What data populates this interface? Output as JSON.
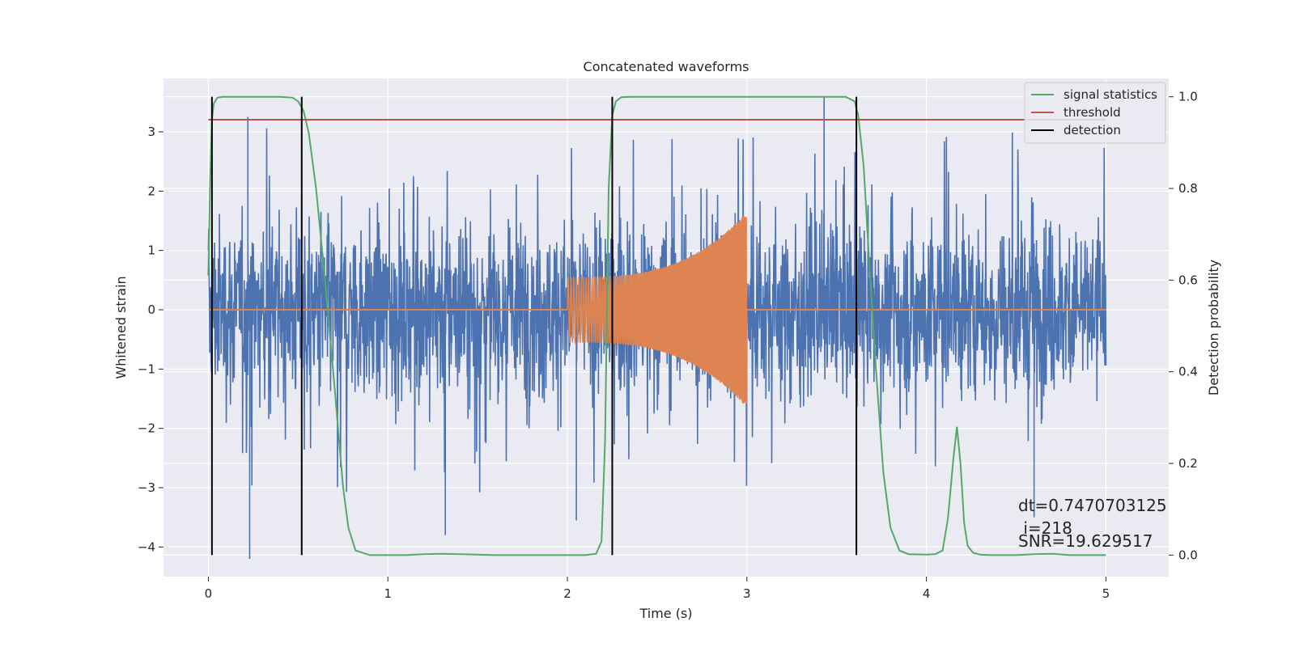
{
  "chart_data": {
    "type": "line",
    "title": "Concatenated waveforms",
    "xlabel": "Time (s)",
    "ylabel": "Whitened strain",
    "ylabel_right": "Detection probability",
    "xlim": [
      -0.25,
      5.35
    ],
    "ylim": [
      -4.5,
      3.9
    ],
    "ylim_right": [
      -0.047,
      1.04
    ],
    "x_ticks": [
      0,
      1,
      2,
      3,
      4,
      5
    ],
    "x_tick_labels": [
      "0",
      "1",
      "2",
      "3",
      "4",
      "5"
    ],
    "y_ticks": [
      3,
      2,
      1,
      0,
      -1,
      -2,
      -3,
      -4
    ],
    "y_tick_labels": [
      "3",
      "2",
      "1",
      "0",
      "−1",
      "−2",
      "−3",
      "−4"
    ],
    "y_right_ticks": [
      1.0,
      0.8,
      0.6,
      0.4,
      0.2,
      0.0
    ],
    "y_right_tick_labels": [
      "1.0",
      "0.8",
      "0.6",
      "0.4",
      "0.2",
      "0.0"
    ],
    "grid": true,
    "legend_placement": "top-right",
    "colors": {
      "plot_bg": "#EAEAF2",
      "grid": "#FFFFFF",
      "noise": "#4C72B0",
      "chirp": "#DD8452",
      "signal_statistics": "#55A868",
      "threshold": "#C44E52",
      "detection": "#000000"
    },
    "legend": [
      {
        "label": "signal statistics",
        "color": "#55A868"
      },
      {
        "label": "threshold",
        "color": "#C44E52"
      },
      {
        "label": "detection",
        "color": "#000000"
      }
    ],
    "series": [
      {
        "name": "signal statistics",
        "axis": "right",
        "x": [
          0,
          0.01,
          0.02,
          0.03,
          0.05,
          0.08,
          0.12,
          0.2,
          0.3,
          0.4,
          0.47,
          0.5,
          0.53,
          0.56,
          0.6,
          0.65,
          0.7,
          0.75,
          0.78,
          0.82,
          0.9,
          1.0,
          1.1,
          1.2,
          1.3,
          1.4,
          1.6,
          1.8,
          2.0,
          2.1,
          2.16,
          2.19,
          2.21,
          2.23,
          2.25,
          2.27,
          2.3,
          2.35,
          2.4,
          2.6,
          2.8,
          3.0,
          3.2,
          3.4,
          3.55,
          3.6,
          3.62,
          3.65,
          3.68,
          3.72,
          3.76,
          3.8,
          3.85,
          3.9,
          4.0,
          4.05,
          4.09,
          4.12,
          4.15,
          4.17,
          4.19,
          4.21,
          4.23,
          4.26,
          4.3,
          4.35,
          4.4,
          4.5,
          4.6,
          4.7,
          4.8,
          5.0
        ],
        "y": [
          0.61,
          0.82,
          0.95,
          0.985,
          0.998,
          1.0,
          1.0,
          1.0,
          1.0,
          1.0,
          0.998,
          0.99,
          0.97,
          0.92,
          0.8,
          0.6,
          0.38,
          0.15,
          0.06,
          0.01,
          0.0,
          0.0,
          0.0,
          0.002,
          0.003,
          0.002,
          0.0,
          0.0,
          0.0,
          0.0,
          0.003,
          0.03,
          0.25,
          0.8,
          0.96,
          0.99,
          0.999,
          1.0,
          1.0,
          1.0,
          1.0,
          1.0,
          1.0,
          1.0,
          1.0,
          0.99,
          0.96,
          0.85,
          0.65,
          0.4,
          0.18,
          0.06,
          0.01,
          0.002,
          0.001,
          0.002,
          0.01,
          0.08,
          0.21,
          0.28,
          0.2,
          0.07,
          0.02,
          0.005,
          0.001,
          0.0,
          0.0,
          0.0,
          0.002,
          0.003,
          0.0,
          0.0
        ]
      },
      {
        "name": "threshold",
        "axis": "right",
        "x": [
          0,
          5
        ],
        "y": [
          0.95,
          0.95
        ]
      }
    ],
    "noise_envelope": {
      "name": "Whitened strain (noise)",
      "x_range": [
        0,
        5
      ],
      "typical_min": -1.0,
      "typical_max": 1.0,
      "spike_max": 3.3,
      "spike_min": -4.2
    },
    "chirp": {
      "x_start": 2.0,
      "x_end": 3.0,
      "amp_start": 0.55,
      "amp_end": 1.65
    },
    "detections_x": [
      0.02,
      0.52,
      2.25,
      3.61
    ],
    "annotations": [
      "dt=0.7470703125",
      " i=218",
      "SNR=19.629517"
    ]
  }
}
